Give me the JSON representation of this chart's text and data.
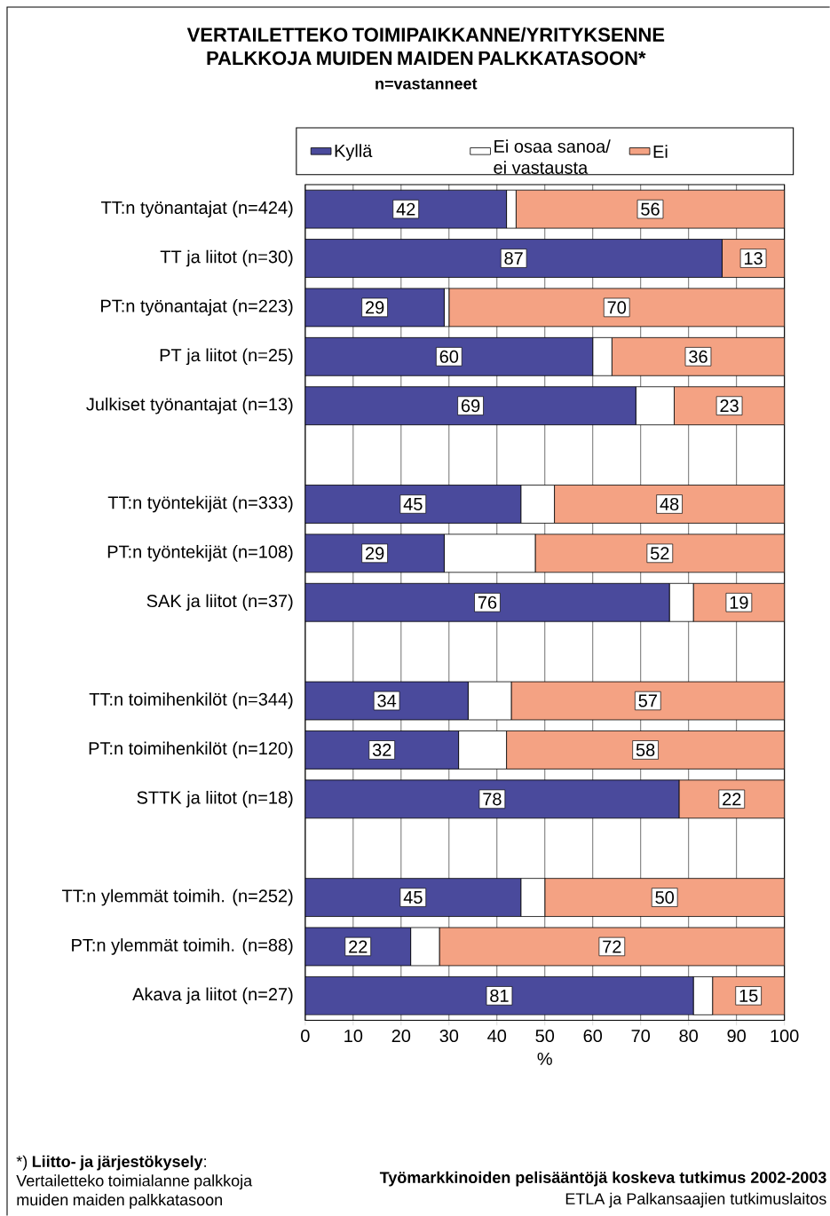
{
  "chart_data": {
    "type": "bar",
    "orientation": "horizontal",
    "stacked": true,
    "title": "VERTAILETTEKO TOIMIPAIKKANNE/YRITYKSENNE PALKKOJA MUIDEN MAIDEN PALKKATASOON*",
    "subtitle": "n=vastanneet",
    "categories": [
      "TT:n työnantajat (n=424)",
      "TT ja liitot (n=30)",
      "PT:n työnantajat (n=223)",
      "PT ja liitot (n=25)",
      "Julkiset työnantajat (n=13)",
      null,
      "TT:n työntekijät (n=333)",
      "PT:n työntekijät (n=108)",
      "SAK ja liitot (n=37)",
      null,
      "TT:n toimihenkilöt (n=344)",
      "PT:n toimihenkilöt (n=120)",
      "STTK ja liitot (n=18)",
      null,
      "TT:n ylemmät toimih. (n=252)",
      "PT:n ylemmät toimih. (n=88)",
      "Akava ja liitot (n=27)"
    ],
    "series": [
      {
        "name": "Kyllä",
        "color": "#4a4a9c",
        "values": [
          42,
          87,
          29,
          60,
          69,
          null,
          45,
          29,
          76,
          null,
          34,
          32,
          78,
          null,
          45,
          22,
          81
        ],
        "value_labels": [
          "42",
          "87",
          "29",
          "60",
          "69",
          null,
          "45",
          "29",
          "76",
          null,
          "34",
          "32",
          "78",
          null,
          "45",
          "22",
          "81"
        ]
      },
      {
        "name": "Ei osaa sanoa/ ei vastausta",
        "color": "#ffffff",
        "values": [
          2,
          0,
          1,
          4,
          8,
          null,
          7,
          19,
          5,
          null,
          9,
          10,
          0,
          null,
          5,
          6,
          4
        ]
      },
      {
        "name": "Ei",
        "color": "#f4a283",
        "values": [
          56,
          13,
          70,
          36,
          23,
          null,
          48,
          52,
          19,
          null,
          57,
          58,
          22,
          null,
          50,
          72,
          15
        ],
        "value_labels": [
          "56",
          "13",
          "70",
          "36",
          "23",
          null,
          "48",
          "52",
          "19",
          null,
          "57",
          "58",
          "22",
          null,
          "50",
          "72",
          "15"
        ]
      }
    ],
    "xlim": [
      0,
      100
    ],
    "xticks": [
      0,
      10,
      20,
      30,
      40,
      50,
      60,
      70,
      80,
      90,
      100
    ],
    "xlabel": "%",
    "grid": "x",
    "legend": "top",
    "annotations": [
      "*) **Liitto- ja järjestökysely**: Vertailetteko toimialanne palkkoja muiden maiden palkkatasoon",
      "Työmarkkinoiden pelisääntöjä koskeva tutkimus 2002-2003",
      "ETLA ja Palkansaajien tutkimuslaitos"
    ]
  }
}
